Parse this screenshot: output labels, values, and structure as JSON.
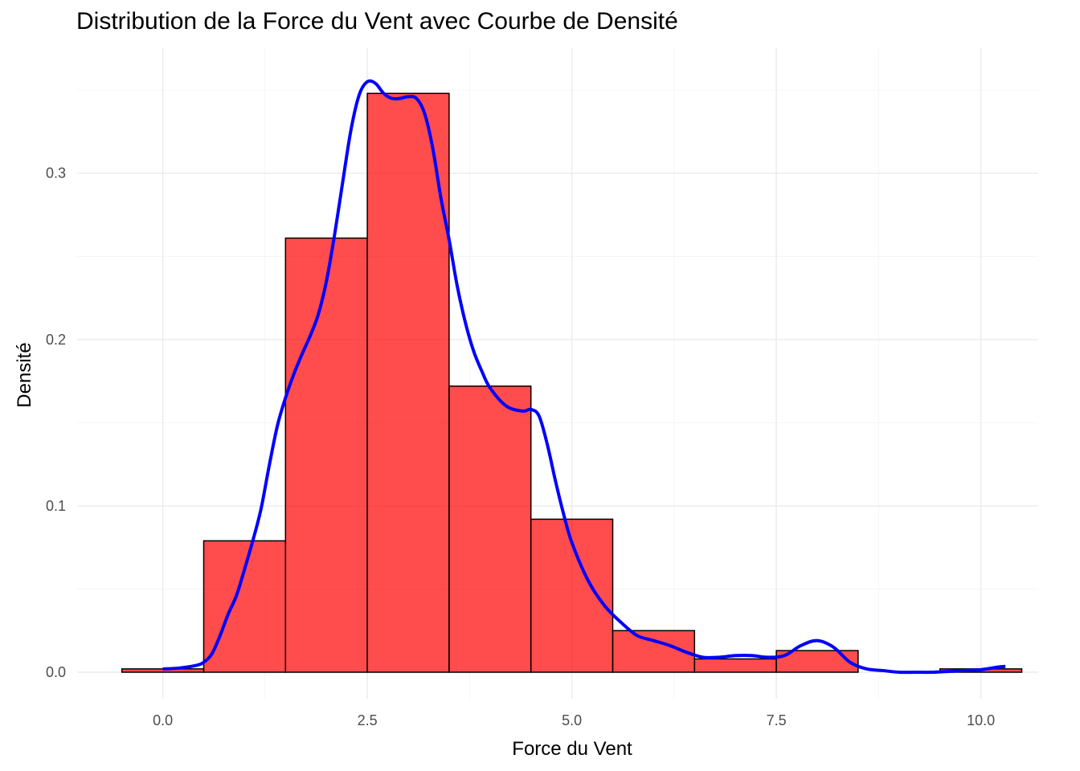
{
  "chart_data": {
    "type": "bar",
    "title": "Distribution de la Force du Vent avec Courbe de Densité",
    "xlabel": "Force du Vent",
    "ylabel": "Densité",
    "xlim": [
      -0.55,
      10.55
    ],
    "ylim": [
      0,
      0.365
    ],
    "x_ticks": [
      0,
      2.5,
      5,
      7.5,
      10
    ],
    "x_tick_labels": [
      "0.0",
      "2.5",
      "5.0",
      "7.5",
      "10.0"
    ],
    "y_ticks": [
      0,
      0.1,
      0.2,
      0.3
    ],
    "y_tick_labels": [
      "0.0",
      "0.1",
      "0.2",
      "0.3"
    ],
    "grid": true,
    "legend": "none",
    "bin_width": 1,
    "bins": [
      {
        "center": 0,
        "value": 0.002
      },
      {
        "center": 1,
        "value": 0.079
      },
      {
        "center": 2,
        "value": 0.261
      },
      {
        "center": 3,
        "value": 0.348
      },
      {
        "center": 4,
        "value": 0.172
      },
      {
        "center": 5,
        "value": 0.092
      },
      {
        "center": 6,
        "value": 0.025
      },
      {
        "center": 7,
        "value": 0.008
      },
      {
        "center": 8,
        "value": 0.013
      },
      {
        "center": 9,
        "value": 0.0
      },
      {
        "center": 10,
        "value": 0.002
      }
    ],
    "bar_fill": "#ff0000",
    "bar_opacity": 0.7,
    "bar_outline": "#000000",
    "density_color": "#0000ff",
    "density_curve": [
      [
        0.0,
        0.002
      ],
      [
        0.2,
        0.0025
      ],
      [
        0.4,
        0.004
      ],
      [
        0.5,
        0.006
      ],
      [
        0.6,
        0.011
      ],
      [
        0.7,
        0.022
      ],
      [
        0.8,
        0.035
      ],
      [
        0.9,
        0.046
      ],
      [
        1.0,
        0.062
      ],
      [
        1.1,
        0.079
      ],
      [
        1.2,
        0.098
      ],
      [
        1.3,
        0.124
      ],
      [
        1.4,
        0.148
      ],
      [
        1.5,
        0.165
      ],
      [
        1.6,
        0.179
      ],
      [
        1.7,
        0.191
      ],
      [
        1.8,
        0.202
      ],
      [
        1.9,
        0.215
      ],
      [
        2.0,
        0.235
      ],
      [
        2.1,
        0.263
      ],
      [
        2.2,
        0.295
      ],
      [
        2.3,
        0.326
      ],
      [
        2.4,
        0.347
      ],
      [
        2.5,
        0.355
      ],
      [
        2.6,
        0.354
      ],
      [
        2.7,
        0.348
      ],
      [
        2.8,
        0.345
      ],
      [
        2.9,
        0.345
      ],
      [
        3.0,
        0.346
      ],
      [
        3.1,
        0.345
      ],
      [
        3.2,
        0.336
      ],
      [
        3.3,
        0.315
      ],
      [
        3.4,
        0.285
      ],
      [
        3.5,
        0.26
      ],
      [
        3.6,
        0.232
      ],
      [
        3.7,
        0.21
      ],
      [
        3.8,
        0.193
      ],
      [
        3.9,
        0.181
      ],
      [
        4.0,
        0.171
      ],
      [
        4.2,
        0.16
      ],
      [
        4.4,
        0.157
      ],
      [
        4.5,
        0.158
      ],
      [
        4.6,
        0.154
      ],
      [
        4.7,
        0.137
      ],
      [
        4.8,
        0.115
      ],
      [
        4.9,
        0.095
      ],
      [
        5.0,
        0.078
      ],
      [
        5.2,
        0.055
      ],
      [
        5.4,
        0.04
      ],
      [
        5.6,
        0.03
      ],
      [
        5.8,
        0.022
      ],
      [
        6.0,
        0.019
      ],
      [
        6.2,
        0.016
      ],
      [
        6.4,
        0.012
      ],
      [
        6.6,
        0.009
      ],
      [
        6.8,
        0.009
      ],
      [
        7.0,
        0.01
      ],
      [
        7.2,
        0.01
      ],
      [
        7.4,
        0.009
      ],
      [
        7.6,
        0.01
      ],
      [
        7.8,
        0.016
      ],
      [
        8.0,
        0.019
      ],
      [
        8.2,
        0.015
      ],
      [
        8.4,
        0.006
      ],
      [
        8.6,
        0.002
      ],
      [
        8.8,
        0.001
      ],
      [
        9.0,
        0.0
      ],
      [
        9.2,
        0.0
      ],
      [
        9.4,
        0.0
      ],
      [
        9.6,
        0.0005
      ],
      [
        9.8,
        0.001
      ],
      [
        10.0,
        0.0015
      ],
      [
        10.2,
        0.003
      ],
      [
        10.3,
        0.0035
      ]
    ]
  }
}
